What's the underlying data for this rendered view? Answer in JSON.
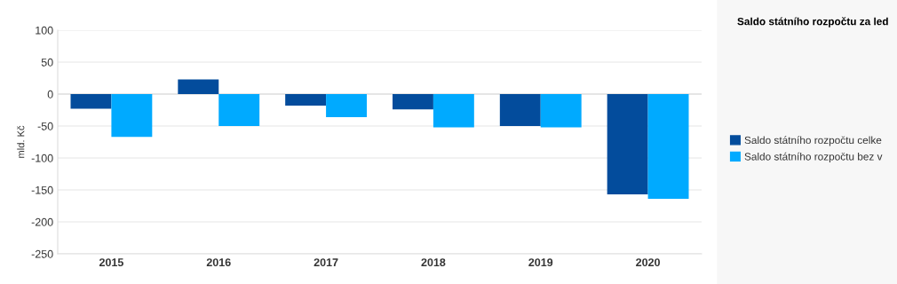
{
  "chart_data": {
    "type": "bar",
    "title": "Saldo státního rozpočtu za led",
    "categories": [
      "2015",
      "2016",
      "2017",
      "2018",
      "2019",
      "2020"
    ],
    "series": [
      {
        "name": "Saldo státního rozpočtu celke",
        "color": "#034c9c",
        "values": [
          -23,
          23,
          -18,
          -24,
          -50,
          -157
        ]
      },
      {
        "name": "Saldo státního rozpočtu bez v",
        "color": "#00aaff",
        "values": [
          -67,
          -50,
          -36,
          -52,
          -52,
          -164
        ]
      }
    ],
    "ylabel": "mld. Kč",
    "ylim": [
      -250,
      100
    ],
    "yticks": [
      -250,
      -200,
      -150,
      -100,
      -50,
      0,
      50,
      100
    ],
    "grid": "y",
    "legend": "right"
  }
}
